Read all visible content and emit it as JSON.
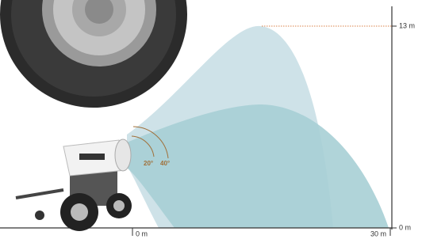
{
  "labels": {
    "height_max": "13 m",
    "height_min": "0 m",
    "distance_min": "0 m",
    "distance_max": "30 m",
    "angle_low": "20°",
    "angle_high": "40°"
  }
}
